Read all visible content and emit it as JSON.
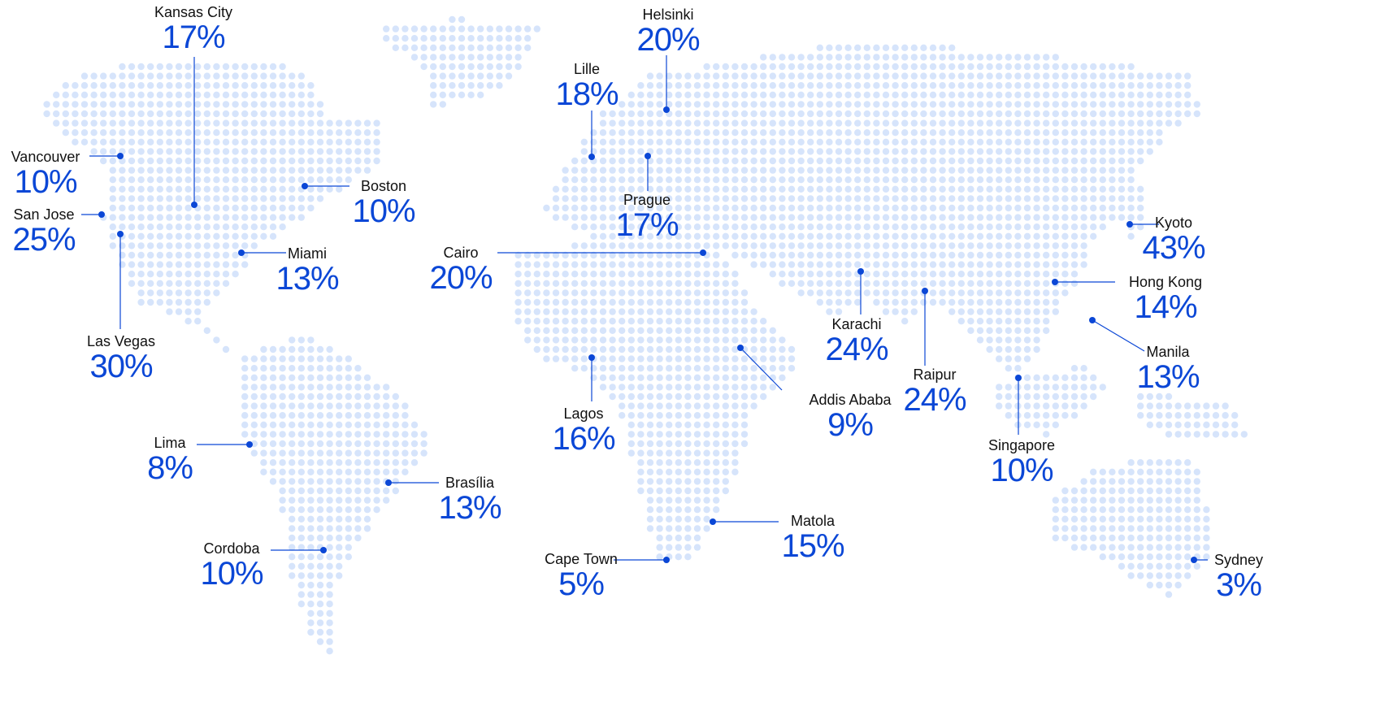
{
  "colors": {
    "land_dot": "#d6e4fb",
    "marker": "#0b47d6",
    "city_text": "#111111",
    "value_text": "#0b47d6"
  },
  "cities": [
    {
      "key": "kansas_city",
      "name": "Kansas City",
      "value": "17%"
    },
    {
      "key": "vancouver",
      "name": "Vancouver",
      "value": "10%"
    },
    {
      "key": "san_jose",
      "name": "San Jose",
      "value": "25%"
    },
    {
      "key": "las_vegas",
      "name": "Las Vegas",
      "value": "30%"
    },
    {
      "key": "boston",
      "name": "Boston",
      "value": "10%"
    },
    {
      "key": "miami",
      "name": "Miami",
      "value": "13%"
    },
    {
      "key": "lima",
      "name": "Lima",
      "value": "8%"
    },
    {
      "key": "brasilia",
      "name": "Brasília",
      "value": "13%"
    },
    {
      "key": "cordoba",
      "name": "Cordoba",
      "value": "10%"
    },
    {
      "key": "helsinki",
      "name": "Helsinki",
      "value": "20%"
    },
    {
      "key": "lille",
      "name": "Lille",
      "value": "18%"
    },
    {
      "key": "prague",
      "name": "Prague",
      "value": "17%"
    },
    {
      "key": "cairo",
      "name": "Cairo",
      "value": "20%"
    },
    {
      "key": "lagos",
      "name": "Lagos",
      "value": "16%"
    },
    {
      "key": "addis_ababa",
      "name": "Addis Ababa",
      "value": "9%"
    },
    {
      "key": "matola",
      "name": "Matola",
      "value": "15%"
    },
    {
      "key": "cape_town",
      "name": "Cape Town",
      "value": "5%"
    },
    {
      "key": "karachi",
      "name": "Karachi",
      "value": "24%"
    },
    {
      "key": "raipur",
      "name": "Raipur",
      "value": "24%"
    },
    {
      "key": "singapore",
      "name": "Singapore",
      "value": "10%"
    },
    {
      "key": "kyoto",
      "name": "Kyoto",
      "value": "43%"
    },
    {
      "key": "hong_kong",
      "name": "Hong Kong",
      "value": "14%"
    },
    {
      "key": "manila",
      "name": "Manila",
      "value": "13%"
    },
    {
      "key": "sydney",
      "name": "Sydney",
      "value": "3%"
    }
  ]
}
